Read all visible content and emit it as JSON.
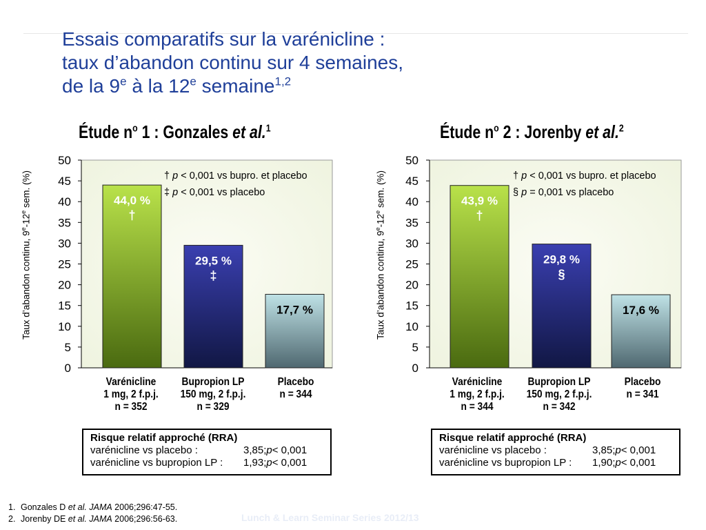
{
  "title": {
    "line1": "Essais comparatifs sur la varénicline :",
    "line2": "taux d’abandon continu sur 4 semaines,",
    "line3_a": "de la 9",
    "line3_sup1": "e",
    "line3_b": " à la 12",
    "line3_sup2": "e",
    "line3_c": " semaine",
    "line3_sup3": "1,2"
  },
  "colors": {
    "title": "#1f3f99",
    "varenicline": "#8fc61c",
    "bupropion": "#2c2f92",
    "placebo": "#9fcbd3",
    "plot_bg": "#eef3de"
  },
  "chart_data": [
    {
      "type": "bar",
      "title": {
        "a": "Étude n",
        "sup": "o",
        "b": " 1 : Gonzales ",
        "italic": "et al.",
        "ref": "1"
      },
      "ylabel": {
        "a": "Taux d’abandon continu, 9",
        "sup1": "e",
        "b": "-12",
        "sup2": "e",
        "c": " sem. (%)"
      },
      "ylim": [
        0,
        50
      ],
      "yticks": [
        0,
        5,
        10,
        15,
        20,
        25,
        30,
        35,
        40,
        45,
        50
      ],
      "categories": [
        {
          "name": "Varénicline",
          "dose": "1 mg, 2 f.p.j.",
          "n": "n = 352"
        },
        {
          "name": "Bupropion LP",
          "dose": "150 mg, 2 f.p.j.",
          "n": "n = 329"
        },
        {
          "name": "Placebo",
          "dose": "",
          "n": "n = 344"
        }
      ],
      "values": [
        44.0,
        29.5,
        17.7
      ],
      "value_labels": [
        "44,0 %",
        "29,5 %",
        "17,7 %"
      ],
      "marks": [
        "†",
        "‡",
        ""
      ],
      "legend": [
        {
          "symbol": "†",
          "p": "p",
          "text": " < 0,001 vs bupro. et placebo"
        },
        {
          "symbol": "‡",
          "p": "p",
          "text": " < 0,001 vs placebo"
        }
      ],
      "rra": {
        "title": "Risque relatif approché (RRA)",
        "rows": [
          {
            "label": "varénicline vs placebo :",
            "value": "3,85; ",
            "p": "p",
            "ptext": " < 0,001"
          },
          {
            "label": "varénicline vs bupropion LP :",
            "value": "1,93; ",
            "p": "p",
            "ptext": " < 0,001"
          }
        ]
      }
    },
    {
      "type": "bar",
      "title": {
        "a": "Étude n",
        "sup": "o",
        "b": " 2 : Jorenby ",
        "italic": "et al.",
        "ref": "2"
      },
      "ylabel": {
        "a": "Taux d’abandon continu, 9",
        "sup1": "e",
        "b": "-12",
        "sup2": "e",
        "c": " sem. (%)"
      },
      "ylim": [
        0,
        50
      ],
      "yticks": [
        0,
        5,
        10,
        15,
        20,
        25,
        30,
        35,
        40,
        45,
        50
      ],
      "categories": [
        {
          "name": "Varénicline",
          "dose": "1 mg, 2 f.p.j.",
          "n": "n = 344"
        },
        {
          "name": "Bupropion LP",
          "dose": "150 mg, 2 f.p.j.",
          "n": "n = 342"
        },
        {
          "name": "Placebo",
          "dose": "",
          "n": "n = 341"
        }
      ],
      "values": [
        43.9,
        29.8,
        17.6
      ],
      "value_labels": [
        "43,9 %",
        "29,8 %",
        "17,6 %"
      ],
      "marks": [
        "†",
        "§",
        ""
      ],
      "legend": [
        {
          "symbol": "†",
          "p": "p",
          "text": " < 0,001 vs bupro. et placebo"
        },
        {
          "symbol": "§ ",
          "p": "p",
          "text": " = 0,001 vs placebo"
        }
      ],
      "rra": {
        "title": "Risque relatif approché (RRA)",
        "rows": [
          {
            "label": "varénicline vs placebo :",
            "value": "3,85; ",
            "p": "p",
            "ptext": " < 0,001"
          },
          {
            "label": "varénicline vs bupropion LP :",
            "value": "1,90; ",
            "p": "p",
            "ptext": " < 0,001"
          }
        ]
      }
    }
  ],
  "references": [
    {
      "num": "1.",
      "author": "Gonzales D ",
      "etal": "et al.",
      "journal": " JAMA",
      "cite": " 2006;296:47-55."
    },
    {
      "num": "2.",
      "author": "Jorenby DE ",
      "etal": "et al.",
      "journal": " JAMA",
      "cite": " 2006;296:56-63."
    }
  ],
  "footer": "Lunch & Learn Seminar Series 2012/13"
}
